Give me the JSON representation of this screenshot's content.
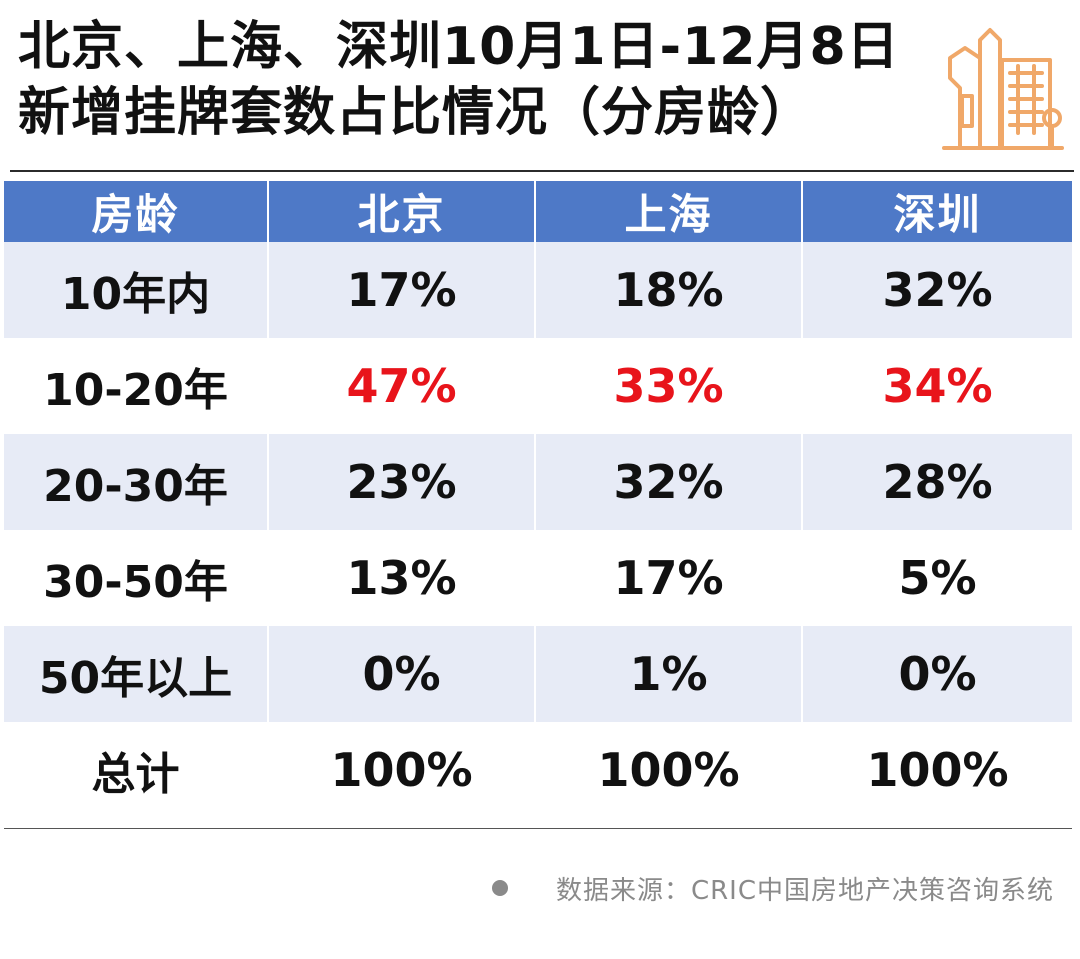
{
  "title": {
    "line1": "北京、上海、深圳10月1日-12月8日",
    "line2": "新增挂牌套数占比情况（分房龄）"
  },
  "colors": {
    "header_bg": "#4e79c7",
    "header_text": "#ffffff",
    "row_shade": "#e7ebf6",
    "highlight": "#e8141b",
    "logo": "#f0a869"
  },
  "logo_icon": "buildings-icon",
  "chart_data": {
    "type": "table",
    "columns": [
      "房龄",
      "北京",
      "上海",
      "深圳"
    ],
    "rows": [
      {
        "label": "10年内",
        "values": [
          "17%",
          "18%",
          "32%"
        ],
        "highlight": false,
        "shaded": true
      },
      {
        "label": "10-20年",
        "values": [
          "47%",
          "33%",
          "34%"
        ],
        "highlight": true,
        "shaded": false
      },
      {
        "label": "20-30年",
        "values": [
          "23%",
          "32%",
          "28%"
        ],
        "highlight": false,
        "shaded": true
      },
      {
        "label": "30-50年",
        "values": [
          "13%",
          "17%",
          "5%"
        ],
        "highlight": false,
        "shaded": false
      },
      {
        "label": "50年以上",
        "values": [
          "0%",
          "1%",
          "0%"
        ],
        "highlight": false,
        "shaded": true
      },
      {
        "label": "总计",
        "values": [
          "100%",
          "100%",
          "100%"
        ],
        "highlight": false,
        "shaded": false
      }
    ]
  },
  "source": {
    "text": "数据来源：CRIC中国房地产决策咨询系统"
  }
}
